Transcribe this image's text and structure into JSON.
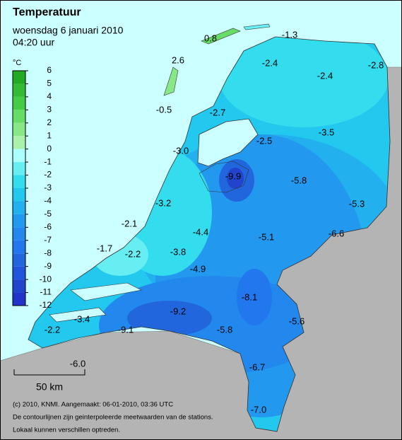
{
  "header": {
    "title": "Temperatuur",
    "date": "woensdag 6 januari 2010",
    "time": "04:20 uur"
  },
  "legend": {
    "unit": "°C",
    "ticks": [
      6,
      5,
      4,
      3,
      2,
      1,
      0,
      -1,
      -2,
      -3,
      -4,
      -5,
      -6,
      -7,
      -8,
      -9,
      -10,
      -11,
      -12
    ],
    "colors": [
      "#22aa22",
      "#33bb33",
      "#44cc44",
      "#66dd66",
      "#88e888",
      "#aaf2aa",
      "#aaffff",
      "#66eef2",
      "#33ddee",
      "#22c8ee",
      "#22b0ee",
      "#2299ee",
      "#2288ee",
      "#2277ee",
      "#2266dd",
      "#2255dd",
      "#2244cc",
      "#2233cc",
      "#2211cc"
    ]
  },
  "stations": [
    {
      "label": "0.8"
    },
    {
      "label": "-1.3"
    },
    {
      "label": "2.6"
    },
    {
      "label": "-2.4"
    },
    {
      "label": "-2.4"
    },
    {
      "label": "-2.8"
    },
    {
      "label": "-0.5"
    },
    {
      "label": "-2.7"
    },
    {
      "label": "-3.5"
    },
    {
      "label": "-2.5"
    },
    {
      "label": "-3.0"
    },
    {
      "label": "-9.9"
    },
    {
      "label": "-5.8"
    },
    {
      "label": "-5.3"
    },
    {
      "label": "-3.2"
    },
    {
      "label": "-2.1"
    },
    {
      "label": "-6.6"
    },
    {
      "label": "-4.4"
    },
    {
      "label": "-5.1"
    },
    {
      "label": "-1.7"
    },
    {
      "label": "-2.2"
    },
    {
      "label": "-3.8"
    },
    {
      "label": "-4.9"
    },
    {
      "label": "-8.1"
    },
    {
      "label": "-3.4"
    },
    {
      "label": "-9.2"
    },
    {
      "label": "-5.6"
    },
    {
      "label": "-2.2"
    },
    {
      "label": "-9.1"
    },
    {
      "label": "-5.8"
    },
    {
      "label": "-6.0"
    },
    {
      "label": "-6.7"
    },
    {
      "label": "-7.0"
    }
  ],
  "scale_bar": {
    "label": "50 km"
  },
  "footer": {
    "line1": "(c) 2010, KNMI. Aangemaakt: 06-01-2010, 03:36 UTC",
    "line2": "De contourlijnen zijn geinterpoleerde meetwaarden van de stations.",
    "line3": "Lokaal kunnen verschillen optreden."
  }
}
